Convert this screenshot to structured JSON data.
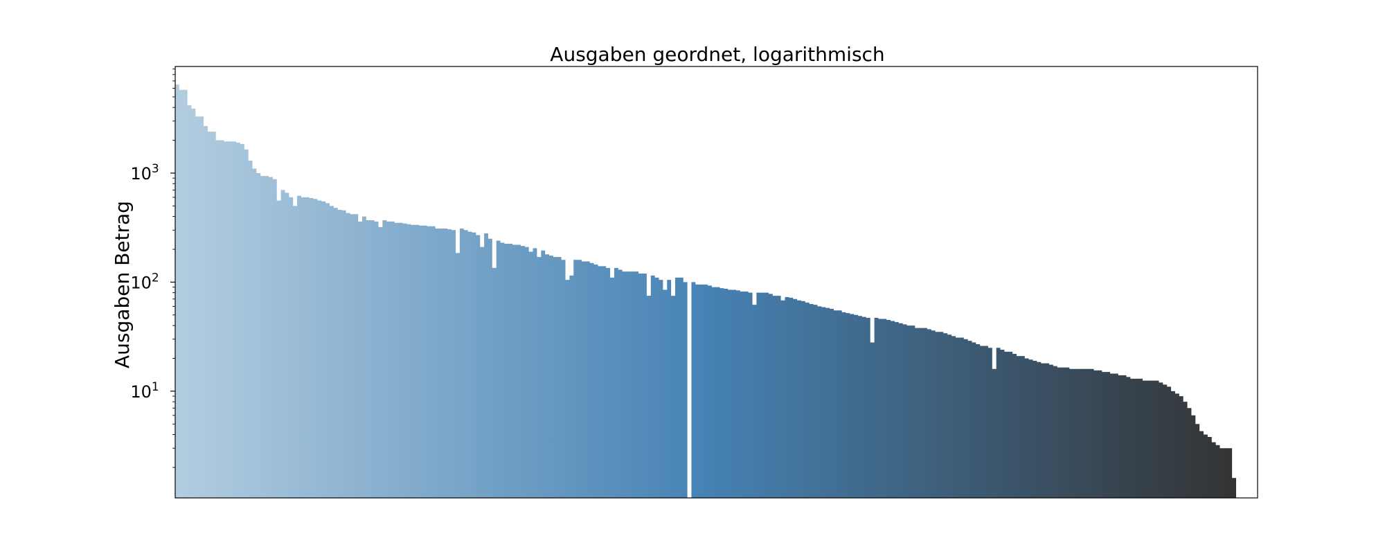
{
  "chart_data": {
    "type": "bar",
    "title": "Ausgaben geordnet, logarithmisch",
    "xlabel": "",
    "ylabel": "Ausgaben Betrag",
    "yscale": "log",
    "ylim": [
      1.05,
      9500
    ],
    "grid": false,
    "legend": "none",
    "x_ticks_shown": false,
    "y_ticks": [
      {
        "value": 10,
        "base": "10",
        "exp": "1"
      },
      {
        "value": 100,
        "base": "10",
        "exp": "2"
      },
      {
        "value": 1000,
        "base": "10",
        "exp": "3"
      }
    ],
    "color_gradient": [
      "#b3cde0",
      "#4682b4",
      "#333333"
    ],
    "values": [
      6500,
      5800,
      5800,
      4200,
      3900,
      3300,
      3300,
      2700,
      2400,
      2400,
      2000,
      2000,
      1950,
      1950,
      1950,
      1900,
      1850,
      1650,
      1300,
      1100,
      1000,
      940,
      940,
      920,
      880,
      560,
      700,
      660,
      600,
      500,
      620,
      600,
      600,
      590,
      580,
      560,
      550,
      530,
      500,
      480,
      460,
      455,
      430,
      420,
      420,
      360,
      400,
      370,
      370,
      360,
      320,
      370,
      360,
      360,
      350,
      350,
      345,
      340,
      335,
      335,
      330,
      330,
      325,
      325,
      310,
      310,
      310,
      305,
      300,
      185,
      310,
      300,
      290,
      285,
      270,
      210,
      280,
      250,
      135,
      240,
      230,
      225,
      225,
      220,
      220,
      215,
      210,
      190,
      205,
      170,
      195,
      180,
      175,
      170,
      170,
      160,
      105,
      115,
      160,
      160,
      155,
      155,
      150,
      145,
      140,
      140,
      135,
      110,
      135,
      130,
      125,
      125,
      125,
      125,
      120,
      120,
      75,
      115,
      110,
      105,
      85,
      105,
      75,
      110,
      110,
      100,
      1.0,
      100,
      95,
      95,
      95,
      93,
      90,
      90,
      88,
      87,
      85,
      85,
      84,
      82,
      82,
      80,
      62,
      80,
      80,
      80,
      78,
      75,
      75,
      68,
      73,
      72,
      70,
      68,
      67,
      65,
      63,
      62,
      60,
      59,
      58,
      57,
      55,
      55,
      53,
      52,
      51,
      50,
      49,
      48,
      47,
      28,
      47,
      46,
      46,
      45,
      44,
      43,
      42,
      41,
      40,
      40,
      38,
      38,
      38,
      37,
      36,
      35,
      35,
      34,
      33,
      32,
      31,
      31,
      30,
      29,
      28,
      27,
      26,
      26,
      25,
      16,
      25,
      24,
      23,
      23,
      22,
      21,
      21,
      20,
      19.5,
      19,
      18.5,
      18,
      18,
      17.5,
      17,
      16.5,
      16.5,
      16.5,
      16,
      16,
      16,
      16,
      16,
      16,
      15.5,
      15.5,
      15,
      15,
      14.5,
      14.5,
      14,
      14,
      13.5,
      13,
      13,
      13,
      12.5,
      12.5,
      12.5,
      12.5,
      12,
      11.5,
      11,
      10,
      9.5,
      9,
      8,
      7,
      6,
      5,
      4.3,
      4,
      3.8,
      3.4,
      3.2,
      3.0,
      3.0,
      3.0,
      1.6
    ]
  }
}
